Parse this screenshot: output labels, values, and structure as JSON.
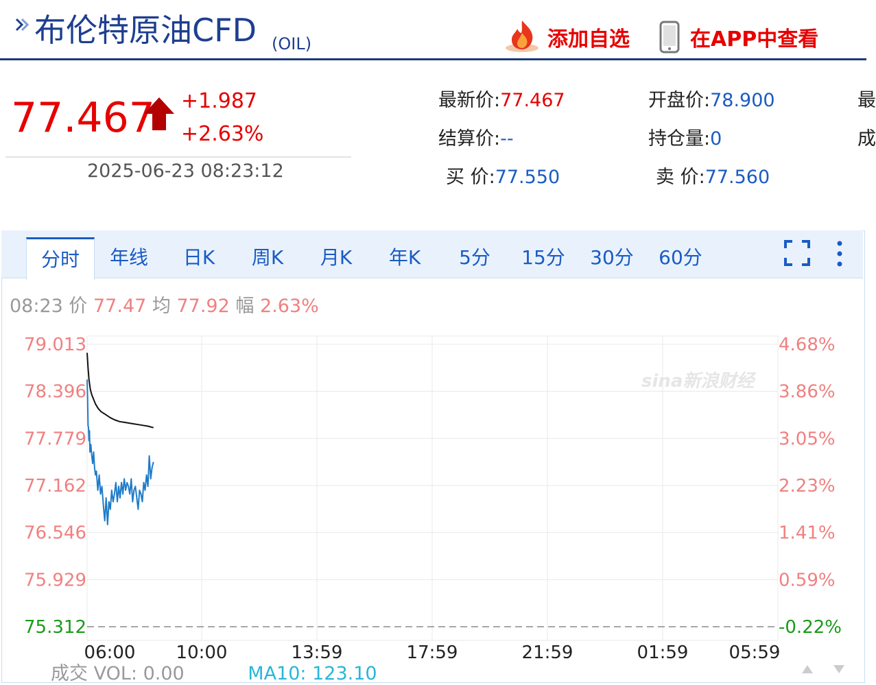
{
  "header": {
    "title": "布伦特原油CFD",
    "code": "(OIL)",
    "add_watch_label": "添加自选",
    "open_app_label": "在APP中查看"
  },
  "quote": {
    "price": "77.467",
    "change": "+1.987",
    "change_pct": "+2.63%",
    "time": "2025-06-23 08:23:12",
    "latest_label": "最新价:",
    "latest_value": "77.467",
    "settle_label": "结算价:",
    "settle_value": "--",
    "bid_label": "买 价:",
    "bid_value": "77.550",
    "open_label": "开盘价:",
    "open_value": "78.900",
    "oi_label": "持仓量:",
    "oi_value": "0",
    "ask_label": "卖 价:",
    "ask_value": "77.560",
    "cut_1": "最",
    "cut_2": "成"
  },
  "tabs": [
    "分时",
    "年线",
    "日K",
    "周K",
    "月K",
    "年K",
    "5分",
    "15分",
    "30分",
    "60分"
  ],
  "info": {
    "time": "08:23",
    "price_label": "价",
    "price": "77.47",
    "avg_label": "均",
    "avg": "77.92",
    "amp_label": "幅",
    "amp": "2.63%"
  },
  "volume": {
    "label": "成交",
    "vol": "VOL: 0.00",
    "ma": "MA10: 123.10"
  },
  "colors": {
    "up": "#e60000",
    "blue": "#1a5bc4",
    "price_line": "#1f7bc8",
    "avg_line": "#111111",
    "axis_red": "#f08080",
    "axis_green": "#1a9a1a"
  },
  "chart_data": {
    "type": "line",
    "x_ticks": [
      "06:00",
      "10:00",
      "13:59",
      "17:59",
      "21:59",
      "01:59",
      "05:59"
    ],
    "y_ticks": [
      "79.013",
      "78.396",
      "77.779",
      "77.162",
      "76.546",
      "75.929",
      "75.312"
    ],
    "y_pct_ticks": [
      "4.68%",
      "3.86%",
      "3.05%",
      "2.23%",
      "1.41%",
      "0.59%",
      "-0.22%"
    ],
    "y_tick_values": [
      79.013,
      78.396,
      77.779,
      77.162,
      76.546,
      75.929,
      75.312
    ],
    "ylim": [
      75.312,
      79.013
    ],
    "prev_close": 75.48,
    "grid": true,
    "watermark": "sina新浪财经",
    "series": [
      {
        "x": [
          "06:00",
          "06:01",
          "06:02",
          "06:03",
          "06:04",
          "06:05",
          "06:06",
          "06:08",
          "06:10",
          "06:12",
          "06:14",
          "06:16",
          "06:18",
          "06:20",
          "06:23",
          "06:26",
          "06:29",
          "06:32",
          "06:35",
          "06:38",
          "06:41",
          "06:44",
          "06:47",
          "06:50",
          "06:53",
          "06:56",
          "06:59",
          "07:02",
          "07:05",
          "07:08",
          "07:11",
          "07:14",
          "07:17",
          "07:20",
          "07:23",
          "07:26",
          "07:29",
          "07:32",
          "07:35",
          "07:38",
          "07:41",
          "07:44",
          "07:47",
          "07:50",
          "07:53",
          "07:56",
          "07:59",
          "08:02",
          "08:05",
          "08:08",
          "08:11",
          "08:14",
          "08:17",
          "08:20",
          "08:23"
        ],
        "values": [
          78.55,
          78.3,
          77.95,
          77.92,
          77.75,
          77.88,
          77.6,
          77.7,
          77.55,
          77.45,
          77.6,
          77.4,
          77.3,
          77.35,
          77.1,
          77.3,
          77.05,
          77.15,
          76.9,
          76.7,
          77.0,
          76.65,
          76.95,
          76.85,
          77.1,
          76.95,
          77.05,
          77.2,
          76.95,
          77.15,
          77.0,
          77.2,
          77.05,
          77.25,
          77.1,
          77.2,
          77.15,
          77.05,
          77.25,
          76.95,
          77.1,
          77.15,
          77.0,
          76.85,
          77.1,
          77.05,
          76.95,
          77.2,
          77.1,
          77.3,
          77.15,
          77.55,
          77.25,
          77.4,
          77.47
        ]
      },
      {
        "x": [
          "06:00",
          "06:02",
          "06:04",
          "06:07",
          "06:10",
          "06:14",
          "06:18",
          "06:24",
          "06:30",
          "06:40",
          "06:50",
          "07:00",
          "07:10",
          "07:20",
          "07:30",
          "07:40",
          "07:50",
          "08:00",
          "08:10",
          "08:23"
        ],
        "values": [
          78.9,
          78.7,
          78.55,
          78.42,
          78.35,
          78.29,
          78.23,
          78.17,
          78.13,
          78.09,
          78.05,
          78.02,
          78.0,
          77.99,
          77.98,
          77.97,
          77.96,
          77.95,
          77.94,
          77.92
        ]
      }
    ]
  }
}
